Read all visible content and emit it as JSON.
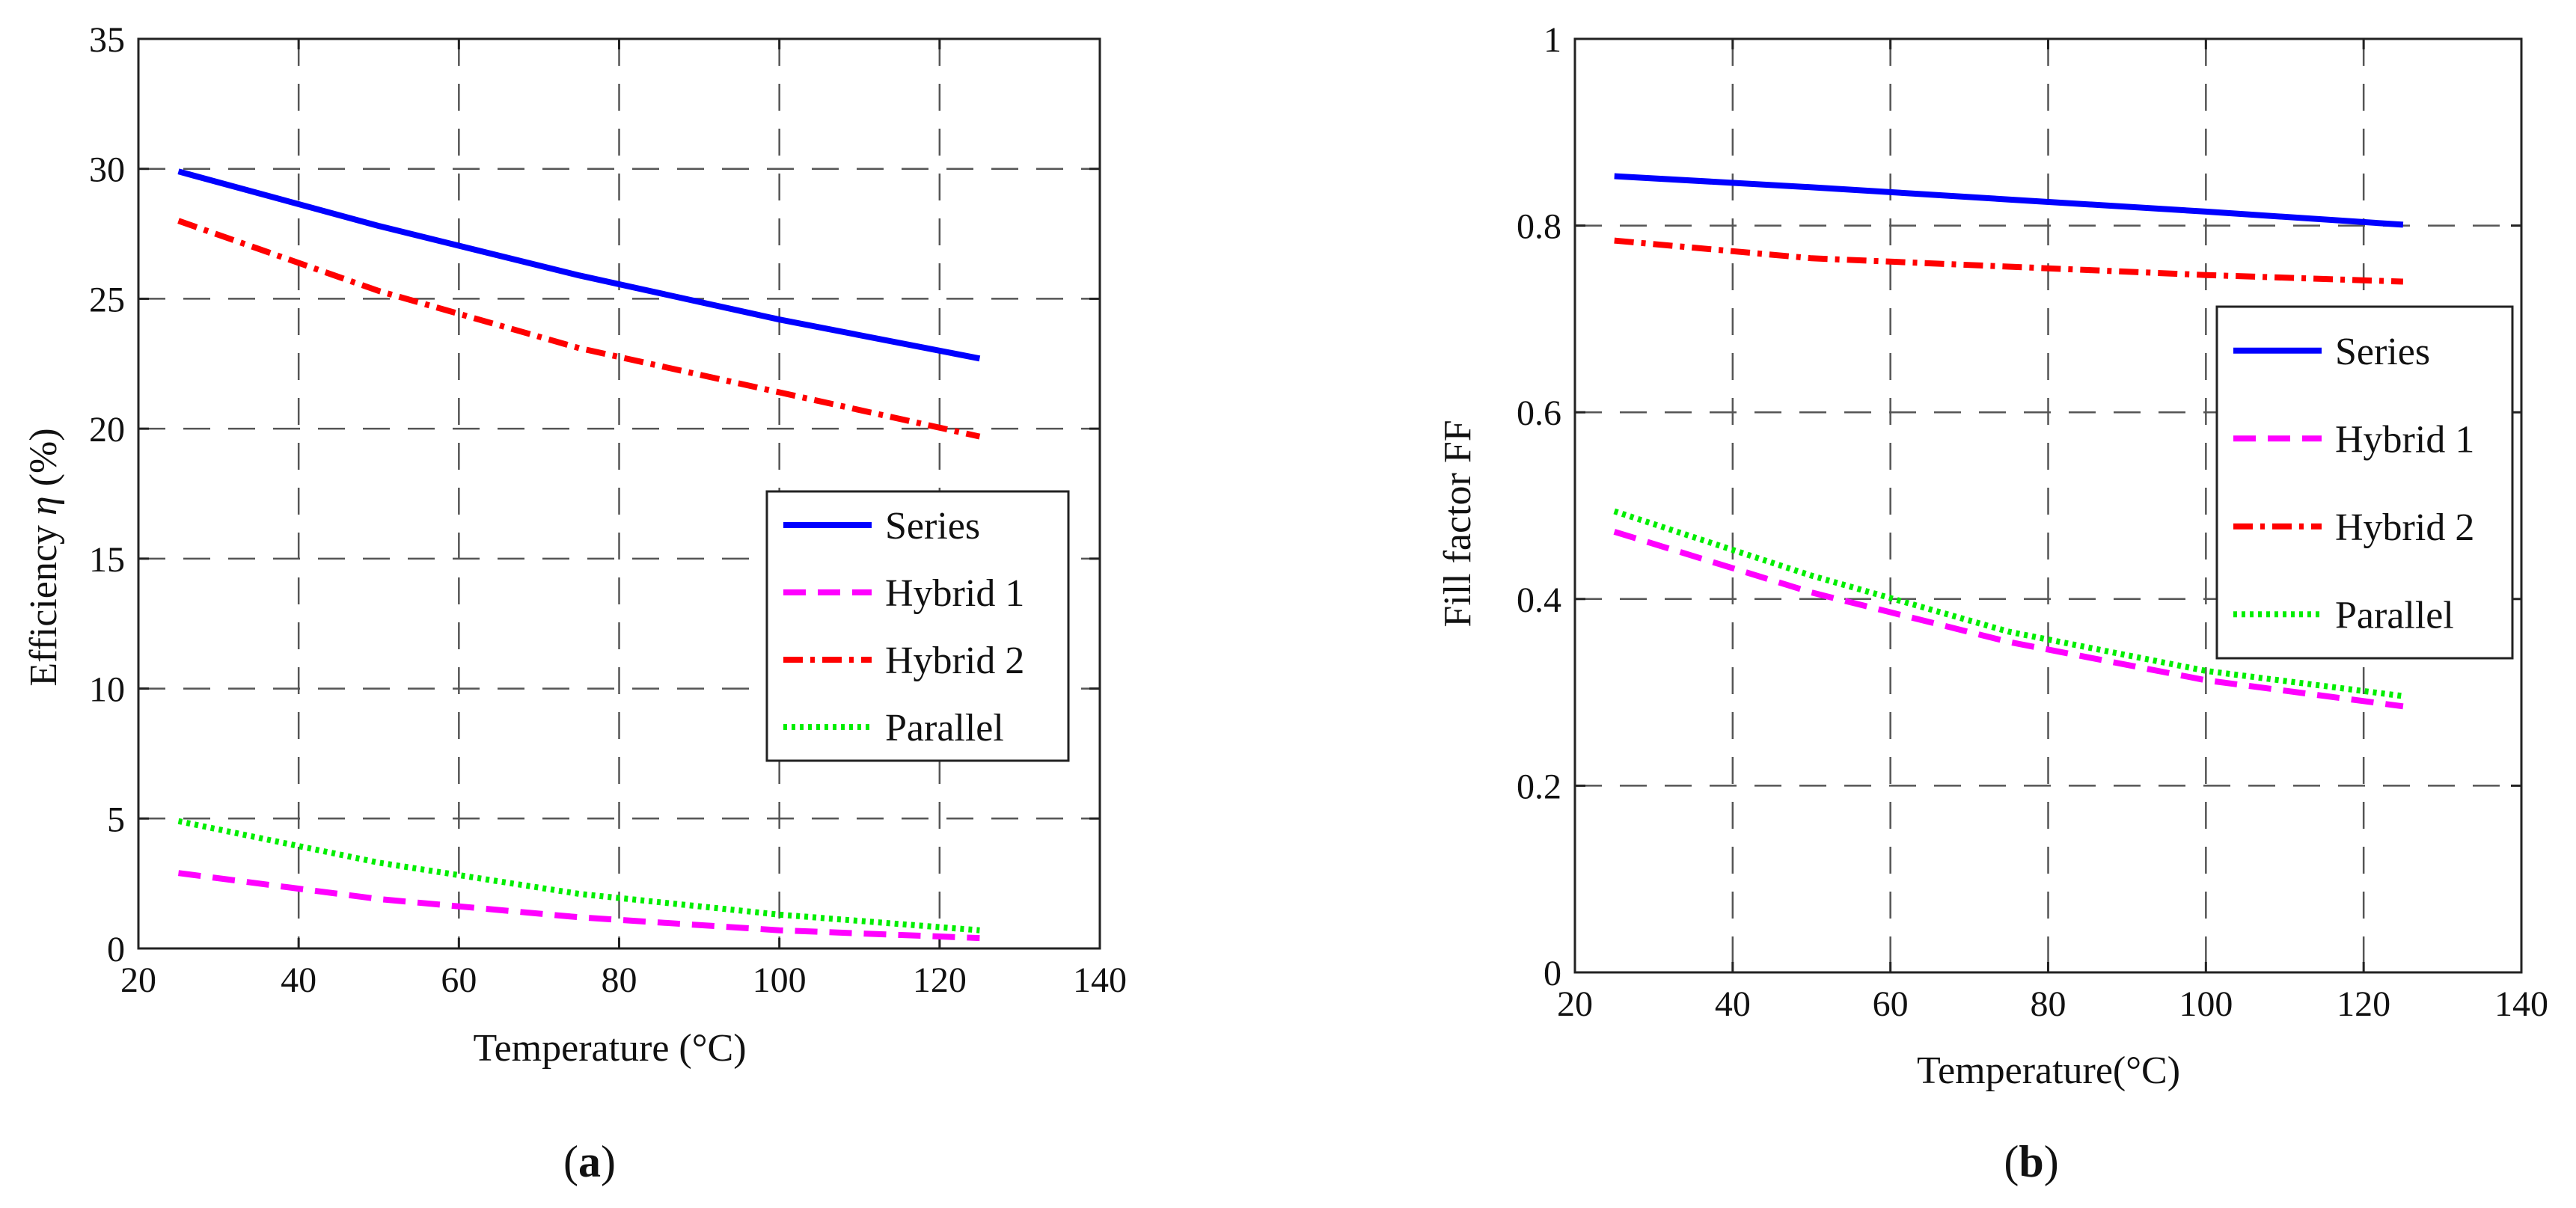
{
  "chart_data": [
    {
      "type": "line",
      "panel_letter": "a",
      "title": "",
      "xlabel": "Temperature (°C)",
      "ylabel_prefix": "Efficiency ",
      "ylabel_symbol": "η",
      "ylabel_suffix": " (%)",
      "xlim": [
        20,
        140
      ],
      "ylim": [
        0,
        35
      ],
      "xticks": [
        20,
        40,
        60,
        80,
        100,
        120,
        140
      ],
      "yticks": [
        0,
        5,
        10,
        15,
        20,
        25,
        30,
        35
      ],
      "xtick_labels": [
        "20",
        "40",
        "60",
        "80",
        "100",
        "120",
        "140"
      ],
      "ytick_labels": [
        "0",
        "5",
        "10",
        "15",
        "20",
        "25",
        "30",
        "35"
      ],
      "grid": true,
      "legend_position": "center-right",
      "series": [
        {
          "name": "Series",
          "color": "#0000ff",
          "style": "solid",
          "x": [
            25,
            50,
            75,
            100,
            125
          ],
          "y": [
            29.9,
            27.8,
            25.9,
            24.2,
            22.7
          ]
        },
        {
          "name": "Hybrid 1",
          "color": "#ff00ff",
          "style": "dashed",
          "x": [
            25,
            50,
            75,
            100,
            125
          ],
          "y": [
            2.9,
            1.9,
            1.2,
            0.7,
            0.4
          ]
        },
        {
          "name": "Hybrid 2",
          "color": "#ff0000",
          "style": "dashdot",
          "x": [
            25,
            50,
            75,
            100,
            125
          ],
          "y": [
            28.0,
            25.3,
            23.1,
            21.4,
            19.7
          ]
        },
        {
          "name": "Parallel",
          "color": "#00ee00",
          "style": "dotted",
          "x": [
            25,
            50,
            75,
            100,
            125
          ],
          "y": [
            4.9,
            3.3,
            2.1,
            1.3,
            0.7
          ]
        }
      ]
    },
    {
      "type": "line",
      "panel_letter": "b",
      "title": "",
      "xlabel": "Temperature(°C)",
      "ylabel": "Fill factor FF",
      "xlim": [
        20,
        140
      ],
      "ylim": [
        0,
        1
      ],
      "xticks": [
        20,
        40,
        60,
        80,
        100,
        120,
        140
      ],
      "yticks": [
        0,
        0.2,
        0.4,
        0.6,
        0.8,
        1
      ],
      "xtick_labels": [
        "20",
        "40",
        "60",
        "80",
        "100",
        "120",
        "140"
      ],
      "ytick_labels": [
        "0",
        "0.2",
        "0.4",
        "0.6",
        "0.8",
        "1"
      ],
      "grid": true,
      "legend_position": "center-right",
      "series": [
        {
          "name": "Series",
          "color": "#0000ff",
          "style": "solid",
          "x": [
            25,
            50,
            75,
            100,
            125
          ],
          "y": [
            0.853,
            0.841,
            0.828,
            0.815,
            0.801
          ]
        },
        {
          "name": "Hybrid 1",
          "color": "#ff00ff",
          "style": "dashed",
          "x": [
            25,
            50,
            75,
            100,
            125
          ],
          "y": [
            0.472,
            0.407,
            0.354,
            0.313,
            0.285
          ]
        },
        {
          "name": "Hybrid 2",
          "color": "#ff0000",
          "style": "dashdot",
          "x": [
            25,
            50,
            75,
            100,
            125
          ],
          "y": [
            0.784,
            0.765,
            0.756,
            0.747,
            0.74
          ]
        },
        {
          "name": "Parallel",
          "color": "#00ee00",
          "style": "dotted",
          "x": [
            25,
            50,
            75,
            100,
            125
          ],
          "y": [
            0.494,
            0.425,
            0.365,
            0.323,
            0.296
          ]
        }
      ]
    }
  ]
}
